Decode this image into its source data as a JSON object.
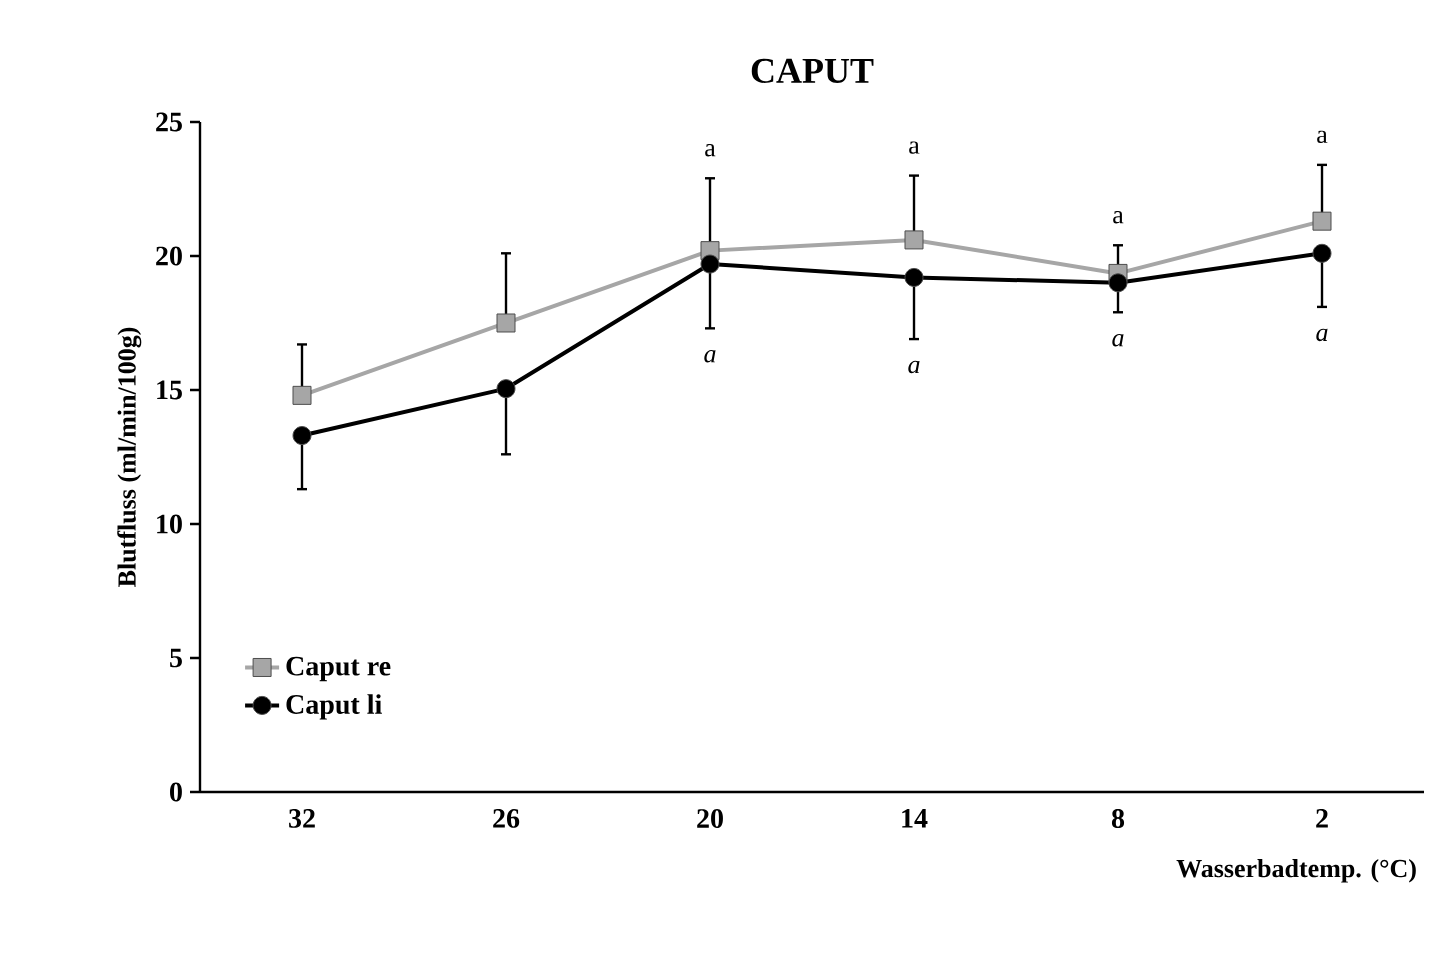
{
  "chart_data": {
    "type": "line",
    "title": "CAPUT",
    "xlabel": "Wasserbadtemp. (°C)",
    "ylabel": "Blutfluss (ml/min/100g)",
    "categories": [
      "32",
      "26",
      "20",
      "14",
      "8",
      "2"
    ],
    "series": [
      {
        "name": "Caput re",
        "color": "#a6a6a6",
        "marker": "square",
        "values": [
          14.8,
          17.5,
          20.2,
          20.6,
          19.35,
          21.3
        ],
        "errors": [
          [
            14.8,
            16.7
          ],
          [
            17.5,
            20.1
          ],
          [
            20.2,
            22.9
          ],
          [
            20.6,
            23.0
          ],
          [
            19.35,
            20.4
          ],
          [
            21.3,
            23.4
          ]
        ]
      },
      {
        "name": "Caput li",
        "color": "#000000",
        "marker": "circle",
        "values": [
          13.3,
          15.05,
          19.7,
          19.2,
          19.0,
          20.1
        ],
        "errors": [
          [
            11.3,
            13.3
          ],
          [
            12.6,
            15.05
          ],
          [
            17.3,
            19.7
          ],
          [
            16.9,
            19.2
          ],
          [
            17.9,
            19.0
          ],
          [
            18.1,
            20.1
          ]
        ]
      }
    ],
    "ylim": [
      0,
      25
    ],
    "yticks": [
      0,
      5,
      10,
      15,
      20,
      25
    ],
    "grid": false,
    "legend": "bottom left",
    "annotations": [
      "a",
      "a",
      "a",
      "a",
      "*a*",
      "*a*",
      "*a*",
      "*a*"
    ]
  }
}
